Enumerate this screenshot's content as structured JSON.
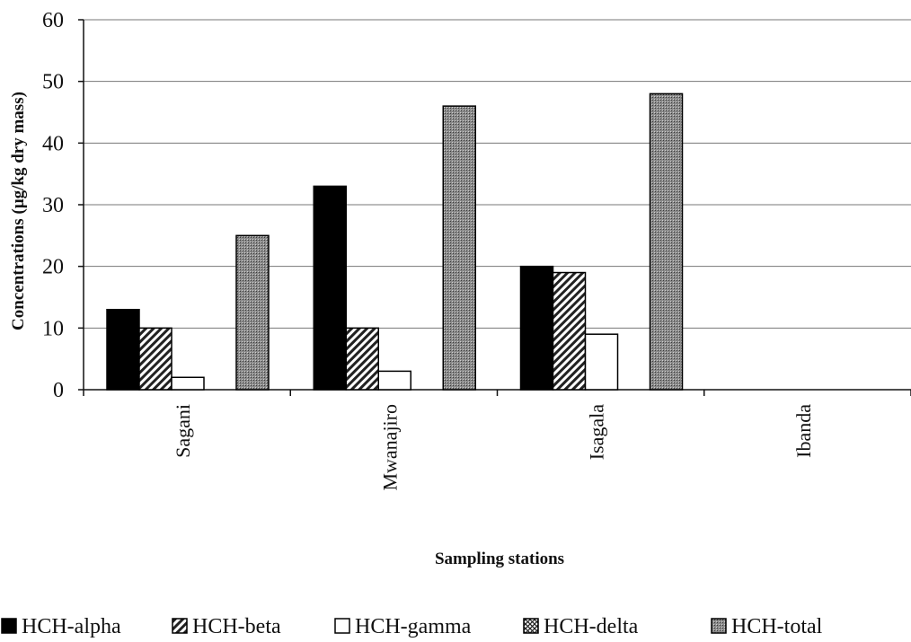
{
  "chart_data": {
    "type": "bar",
    "xlabel": "Sampling stations",
    "ylabel": "Concentrations (µg/kg dry mass)",
    "ylim": [
      0,
      60
    ],
    "yticks": [
      "0",
      "10",
      "20",
      "30",
      "40",
      "50",
      "60"
    ],
    "grid": true,
    "legend_position": "bottom",
    "categories": [
      "Sagani",
      "Mwanajiro",
      "Isagala",
      "Ibanda"
    ],
    "series": [
      {
        "name": "HCH-alpha",
        "values": [
          13,
          33,
          20,
          0
        ],
        "pattern": "solid-black"
      },
      {
        "name": "HCH-beta",
        "values": [
          10,
          10,
          19,
          0
        ],
        "pattern": "diagonal-hatch"
      },
      {
        "name": "HCH-gamma",
        "values": [
          2,
          3,
          9,
          0
        ],
        "pattern": "white"
      },
      {
        "name": "HCH-delta",
        "values": [
          0,
          0,
          0,
          0
        ],
        "pattern": "cross-hatch"
      },
      {
        "name": "HCH-total",
        "values": [
          25,
          46,
          48,
          0
        ],
        "pattern": "dense-gray"
      }
    ]
  }
}
